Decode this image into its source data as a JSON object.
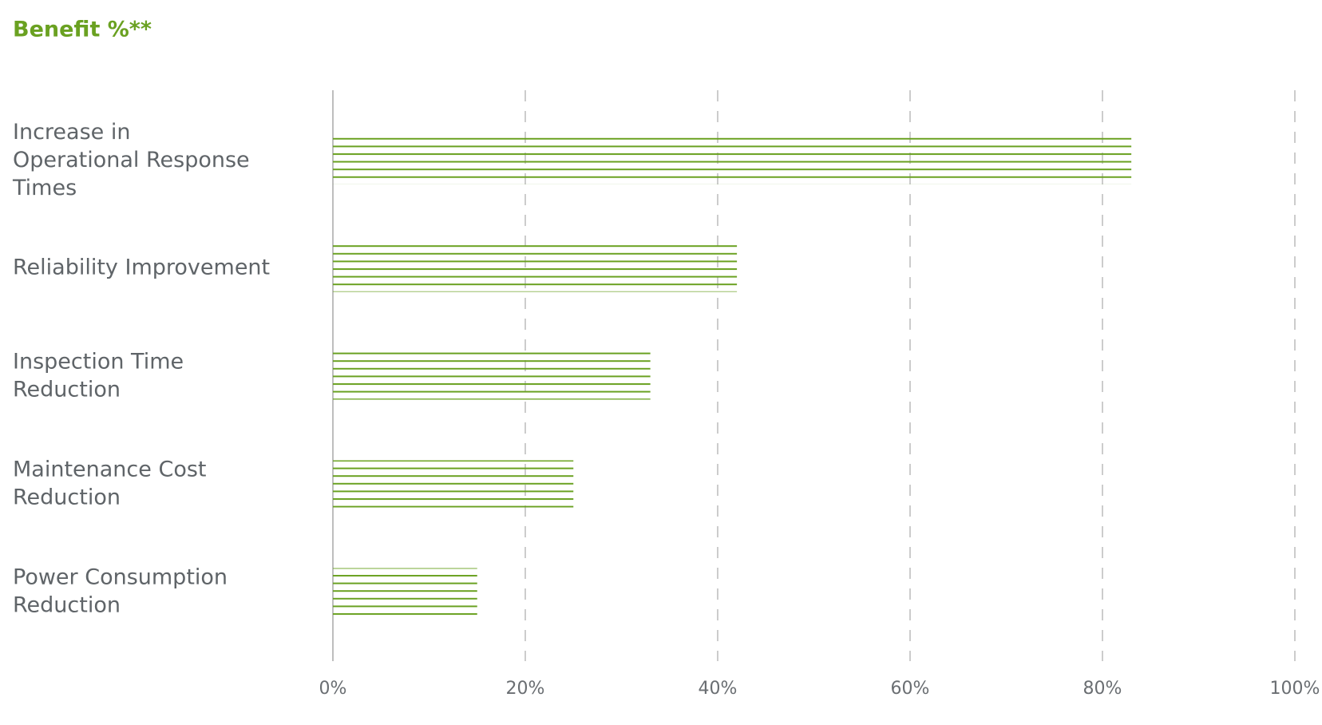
{
  "chart_data": {
    "type": "bar",
    "orientation": "horizontal",
    "title": "Benefit %**",
    "categories": [
      "Increase in Operational Response Times",
      "Reliability Improvement",
      "Inspection Time Reduction",
      "Maintenance Cost Reduction",
      "Power Consumption Reduction"
    ],
    "values": [
      83,
      42,
      33,
      25,
      15
    ],
    "color": "#6aa121",
    "xlim": [
      0,
      100
    ],
    "xticks": [
      {
        "value": 0,
        "label": "0%"
      },
      {
        "value": 20,
        "label": "20%"
      },
      {
        "value": 40,
        "label": "40%"
      },
      {
        "value": 60,
        "label": "60%"
      },
      {
        "value": 80,
        "label": "80%"
      },
      {
        "value": 100,
        "label": "100%"
      }
    ],
    "grid": true
  }
}
